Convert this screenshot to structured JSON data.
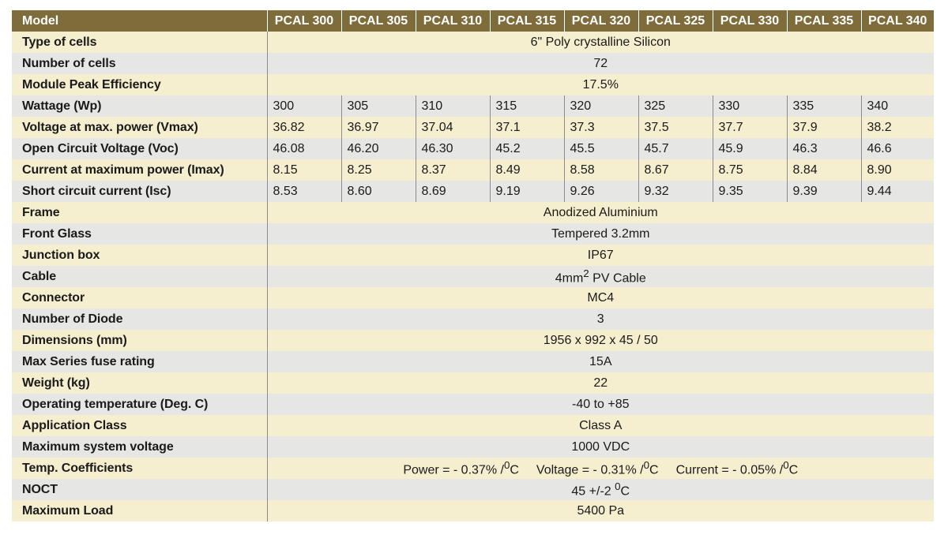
{
  "table": {
    "header_label": "Model",
    "models": [
      "PCAL 300",
      "PCAL 305",
      "PCAL 310",
      "PCAL 315",
      "PCAL 320",
      "PCAL 325",
      "PCAL 330",
      "PCAL 335",
      "PCAL 340"
    ],
    "rows": [
      {
        "label": "Type of cells",
        "value": "6\" Poly crystalline Silicon"
      },
      {
        "label": "Number of cells",
        "value": "72"
      },
      {
        "label": "Module Peak Efficiency",
        "value": "17.5%"
      },
      {
        "label": "Wattage (Wp)",
        "values": [
          "300",
          "305",
          "310",
          "315",
          "320",
          "325",
          "330",
          "335",
          "340"
        ]
      },
      {
        "label": "Voltage at max. power (Vmax)",
        "values": [
          "36.82",
          "36.97",
          "37.04",
          "37.1",
          "37.3",
          "37.5",
          "37.7",
          "37.9",
          "38.2"
        ]
      },
      {
        "label": "Open Circuit Voltage (Voc)",
        "values": [
          "46.08",
          "46.20",
          "46.30",
          "45.2",
          "45.5",
          "45.7",
          "45.9",
          "46.3",
          "46.6"
        ]
      },
      {
        "label": "Current at maximum power (Imax)",
        "values": [
          "8.15",
          "8.25",
          "8.37",
          "8.49",
          "8.58",
          "8.67",
          "8.75",
          "8.84",
          "8.90"
        ]
      },
      {
        "label": "Short circuit current (Isc)",
        "values": [
          "8.53",
          "8.60",
          "8.69",
          "9.19",
          "9.26",
          "9.32",
          "9.35",
          "9.39",
          "9.44"
        ]
      },
      {
        "label": "Frame",
        "value": "Anodized Aluminium"
      },
      {
        "label": "Front Glass",
        "value": "Tempered 3.2mm"
      },
      {
        "label": "Junction box",
        "value": "IP67"
      },
      {
        "label": "Cable",
        "value_html": "4mm<sup>2</sup> PV Cable"
      },
      {
        "label": "Connector",
        "value": "MC4"
      },
      {
        "label": "Number of Diode",
        "value": "3"
      },
      {
        "label": "Dimensions (mm)",
        "value": "1956 x 992 x 45 / 50"
      },
      {
        "label": "Max Series fuse rating",
        "value": "15A"
      },
      {
        "label": "Weight (kg)",
        "value": "22"
      },
      {
        "label": "Operating temperature (Deg. C)",
        "value": "-40 to +85"
      },
      {
        "label": "Application Class",
        "value": "Class A"
      },
      {
        "label": "Maximum system voltage",
        "value": "1000 VDC"
      },
      {
        "label": "Temp. Coefficients",
        "parts_html": [
          "Power = - 0.37% /<sup>0</sup>C",
          "Voltage = - 0.31% /<sup>0</sup>C",
          "Current = - 0.05% /<sup>0</sup>C"
        ]
      },
      {
        "label": "NOCT",
        "value_html": "45 +/-2 <sup>0</sup>C"
      },
      {
        "label": "Maximum Load",
        "value": "5400 Pa"
      }
    ]
  }
}
